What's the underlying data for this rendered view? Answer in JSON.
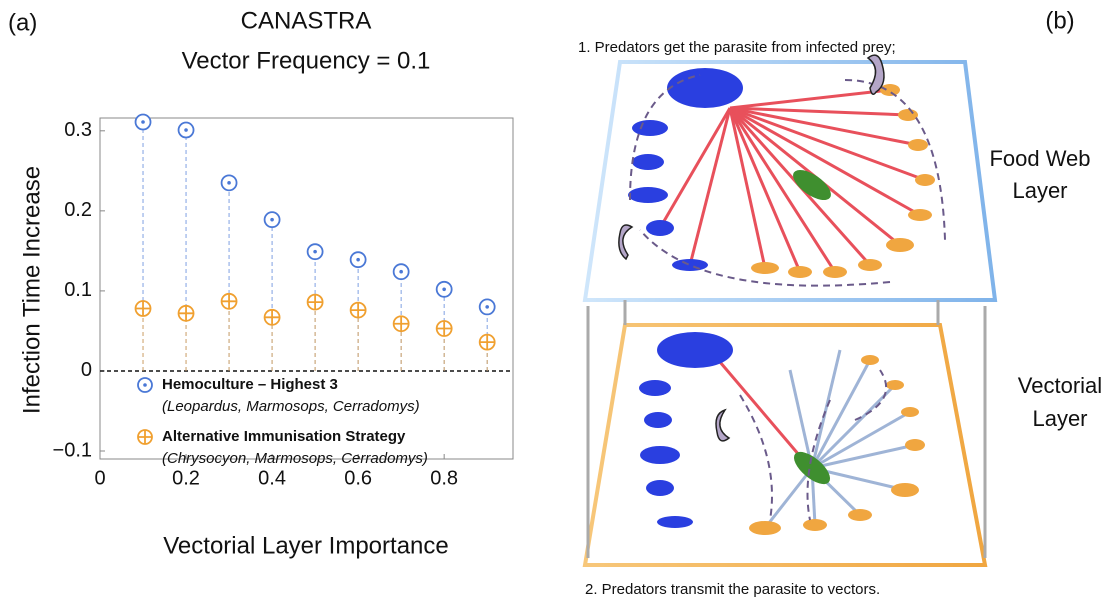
{
  "chart_data": {
    "type": "stem",
    "title": "CANASTRA",
    "subtitle": "Vector Frequency = 0.1",
    "panel_label": "(a)",
    "x_label": "Vectorial Layer Importance",
    "y_label": "Infection Time Increase",
    "x": [
      0.1,
      0.2,
      0.3,
      0.4,
      0.5,
      0.6,
      0.7,
      0.8,
      0.9
    ],
    "series": [
      {
        "name": "Hemoculture – Highest 3",
        "detail": "(Leopardus, Marmosops, Cerradomys)",
        "color": "#4a78d6",
        "marker": "dot",
        "values": [
          0.311,
          0.301,
          0.235,
          0.189,
          0.149,
          0.139,
          0.124,
          0.102,
          0.08
        ]
      },
      {
        "name": "Alternative Immunisation Strategy",
        "detail": "(Chrysocyon, Marmosops, Cerradomys)",
        "color": "#f0a030",
        "marker": "plus",
        "values": [
          0.078,
          0.072,
          0.087,
          0.067,
          0.086,
          0.076,
          0.059,
          0.053,
          0.036
        ]
      }
    ],
    "xlim": [
      0,
      0.96
    ],
    "ylim": [
      -0.11,
      0.316
    ],
    "xticks": [
      0,
      0.2,
      0.4,
      0.6,
      0.8
    ],
    "yticks": [
      {
        "value": -0.1,
        "label": "−0.1"
      },
      0,
      0.1,
      0.2,
      0.3
    ],
    "zero_line": true
  },
  "diagram": {
    "panel_label": "(b)",
    "top_caption": "1. Predators get the parasite from infected prey;",
    "bottom_caption": "2. Predators transmit the parasite to vectors.",
    "layers": [
      {
        "label": [
          "Food Web",
          "Layer"
        ]
      },
      {
        "label": [
          "Vectorial",
          "Layer"
        ]
      }
    ]
  }
}
